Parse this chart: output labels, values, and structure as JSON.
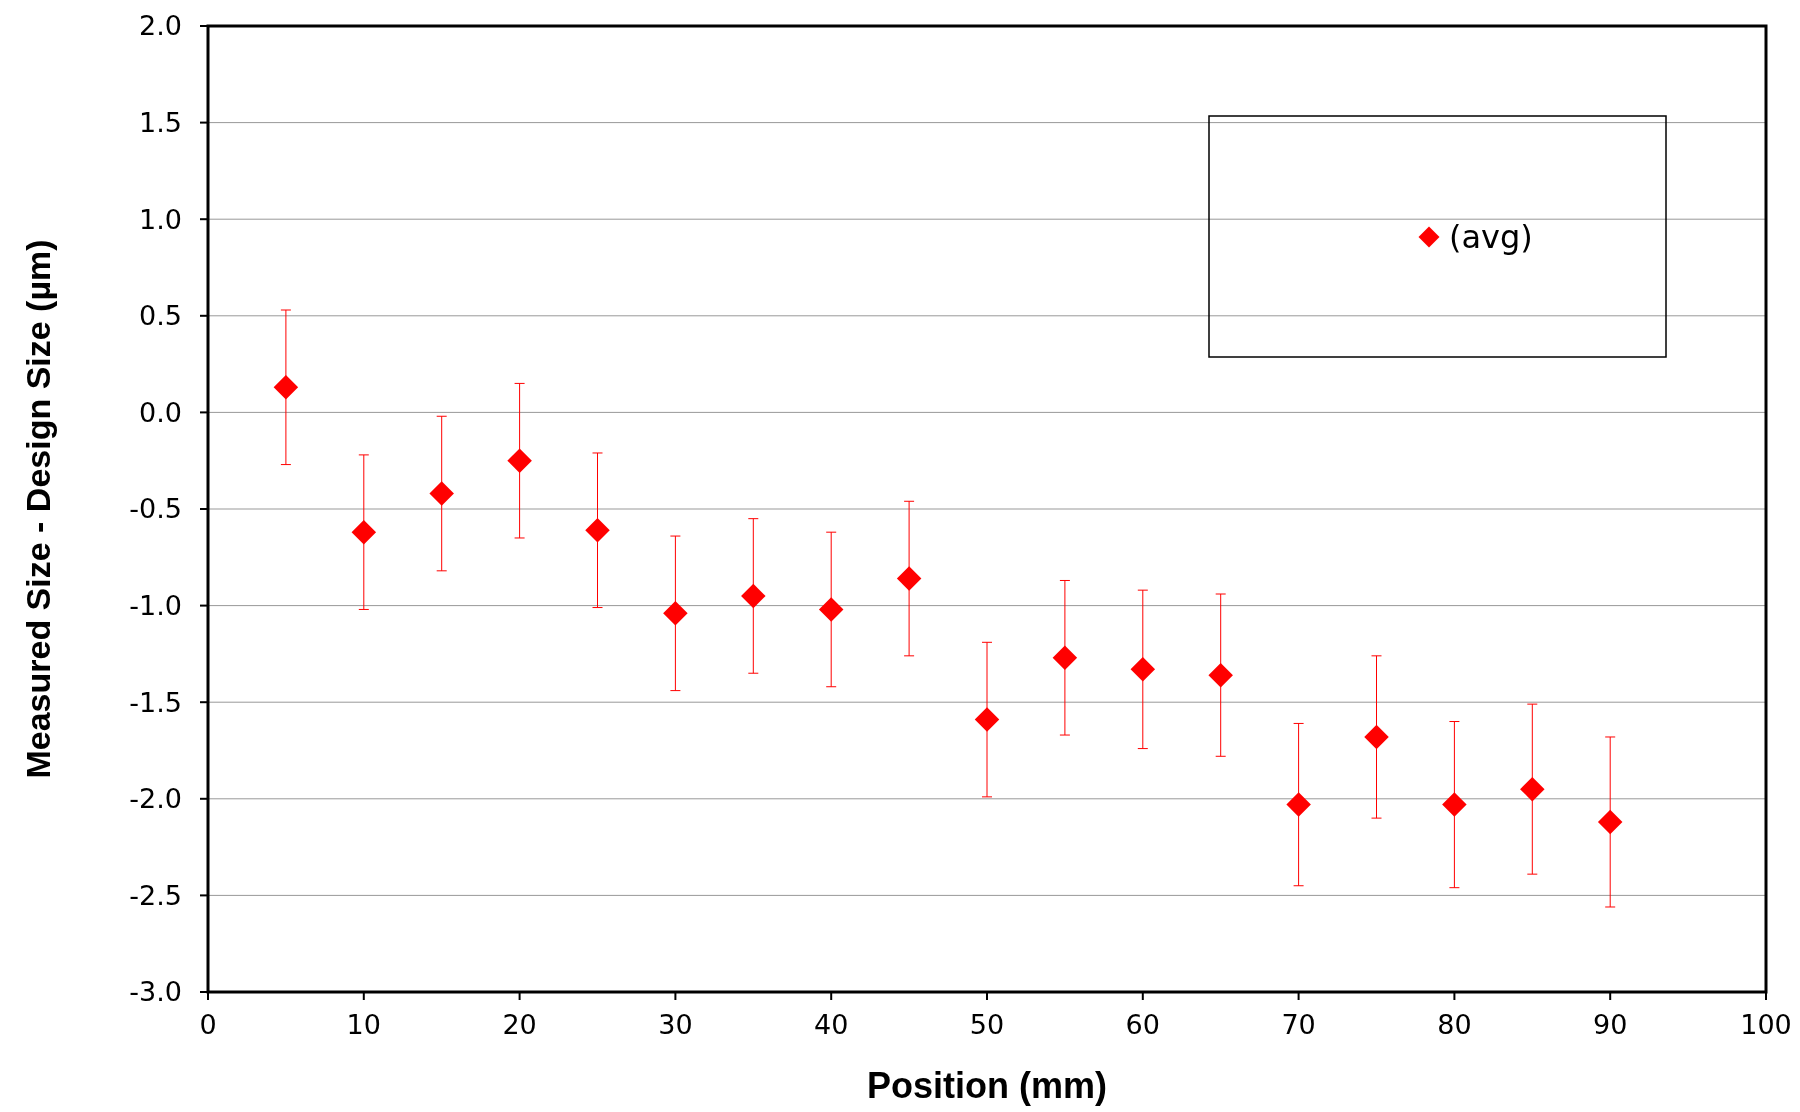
{
  "chart_data": {
    "type": "scatter",
    "xlabel": "Position (mm)",
    "ylabel": "Measured Size - Design Size (µm)",
    "x": [
      5,
      10,
      15,
      20,
      25,
      30,
      35,
      40,
      45,
      50,
      55,
      60,
      65,
      70,
      75,
      80,
      85,
      90
    ],
    "series": [
      {
        "name": "(avg)",
        "color": "#ff0000",
        "values": [
          0.13,
          -0.62,
          -0.42,
          -0.25,
          -0.61,
          -1.04,
          -0.95,
          -1.02,
          -0.86,
          -1.59,
          -1.27,
          -1.33,
          -1.36,
          -2.03,
          -1.68,
          -2.03,
          -1.95,
          -2.12
        ],
        "errors": [
          0.4,
          0.4,
          0.4,
          0.4,
          0.4,
          0.4,
          0.4,
          0.4,
          0.4,
          0.4,
          0.4,
          0.41,
          0.42,
          0.42,
          0.42,
          0.43,
          0.44,
          0.44
        ]
      }
    ],
    "xlim": [
      0,
      100
    ],
    "xticks": [
      0,
      10,
      20,
      30,
      40,
      50,
      60,
      70,
      80,
      90,
      100
    ],
    "ylim": [
      -3,
      2
    ],
    "yticks": [
      {
        "value": -3,
        "label": "-3.0"
      },
      {
        "value": -2.5,
        "label": "-2.5"
      },
      {
        "value": -2,
        "label": "-2.0"
      },
      {
        "value": -1.5,
        "label": "-1.5"
      },
      {
        "value": -1,
        "label": "-1.0"
      },
      {
        "value": -0.5,
        "label": "-0.5"
      },
      {
        "value": 0,
        "label": "0.0"
      },
      {
        "value": 0.5,
        "label": "0.5"
      },
      {
        "value": 1,
        "label": "1.0"
      },
      {
        "value": 1.5,
        "label": "1.5"
      },
      {
        "value": 2,
        "label": "2.0"
      }
    ],
    "grid": "y",
    "legend": "top right",
    "marker": "diamond"
  }
}
